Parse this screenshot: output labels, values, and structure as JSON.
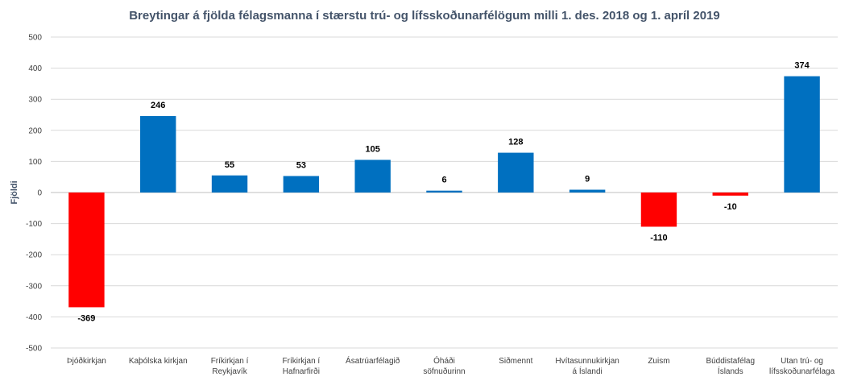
{
  "chart_data": {
    "type": "bar",
    "title": "Breytingar á fjölda félagsmanna í stærstu trú- og lífsskoðunarfélögum milli 1. des. 2018 og 1. apríl 2019",
    "xlabel": "",
    "ylabel": "Fjöldi",
    "ylim": [
      -500,
      500
    ],
    "yticks": [
      500,
      400,
      300,
      200,
      100,
      0,
      -100,
      -200,
      -300,
      -400,
      -500
    ],
    "grid": true,
    "legend": "none",
    "categories": [
      [
        "Þjóðkirkjan"
      ],
      [
        "Kaþólska kirkjan"
      ],
      [
        "Fríkirkjan í",
        "Reykjavík"
      ],
      [
        "Fríkirkjan í",
        "Hafnarfirði"
      ],
      [
        "Ásatrúarfélagið"
      ],
      [
        "Óháði",
        "söfnuðurinn"
      ],
      [
        "Siðmennt"
      ],
      [
        "Hvítasunnukirkjan",
        "á Íslandi"
      ],
      [
        "Zuism"
      ],
      [
        "Búddistafélag",
        "Íslands"
      ],
      [
        "Utan trú- og",
        "lífsskoðunarfélaga"
      ]
    ],
    "values": [
      -369,
      246,
      55,
      53,
      105,
      6,
      128,
      9,
      -110,
      -10,
      374
    ],
    "colors": {
      "positive": "#0070C0",
      "negative": "#FF0000"
    }
  }
}
